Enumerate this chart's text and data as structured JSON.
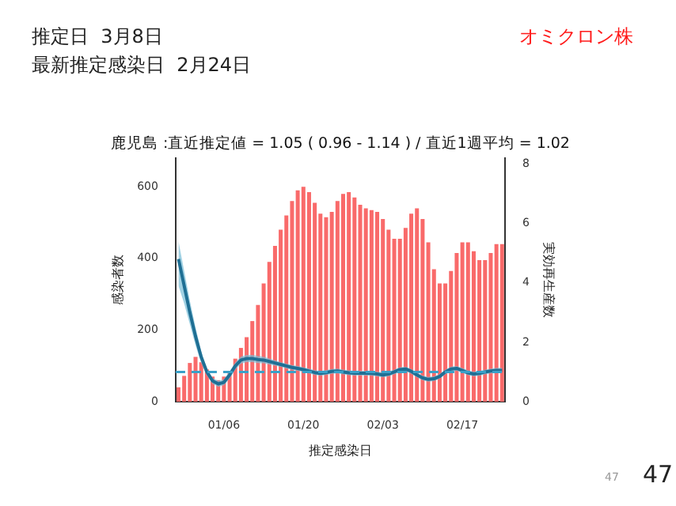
{
  "chart_data": {
    "type": "bar",
    "title": "鹿児島 :直近推定値 = 1.05 ( 0.96 - 1.14 ) / 直近1週平均 = 1.02",
    "xlabel": "推定感染日",
    "ylabel": "感染者数",
    "y2label": "実効再生産数",
    "annotations": [
      "推定日  3月8日",
      "最新推定感染日  2月24日",
      "オミクロン株",
      "47",
      "47"
    ],
    "categories": [
      null,
      null,
      null,
      null,
      null,
      null,
      null,
      null,
      "01/06",
      null,
      null,
      null,
      null,
      null,
      null,
      null,
      null,
      null,
      null,
      null,
      null,
      null,
      "01/20",
      null,
      null,
      null,
      null,
      null,
      null,
      null,
      null,
      null,
      null,
      null,
      null,
      null,
      "02/03",
      null,
      null,
      null,
      null,
      null,
      null,
      null,
      null,
      null,
      null,
      null,
      null,
      null,
      "02/17",
      null,
      null,
      null,
      null,
      null,
      null,
      null
    ],
    "series": [
      {
        "color": "#f96a6a",
        "values": [
          40,
          72,
          108,
          125,
          110,
          90,
          70,
          60,
          70,
          85,
          120,
          150,
          180,
          225,
          270,
          330,
          390,
          435,
          480,
          520,
          560,
          590,
          600,
          585,
          555,
          525,
          515,
          530,
          560,
          580,
          585,
          570,
          550,
          540,
          535,
          530,
          510,
          480,
          455,
          455,
          485,
          525,
          540,
          510,
          445,
          370,
          330,
          330,
          365,
          415,
          445,
          445,
          420,
          395,
          395,
          415,
          440,
          440
        ]
      },
      {
        "type": "line",
        "axis": "y2",
        "color": "#1f6f94",
        "marker": "none",
        "line_style": "solid",
        "values": [
          4.8,
          3.9,
          3.0,
          2.2,
          1.5,
          1.0,
          0.7,
          0.6,
          0.65,
          0.9,
          1.2,
          1.4,
          1.45,
          1.45,
          1.42,
          1.4,
          1.35,
          1.3,
          1.25,
          1.2,
          1.15,
          1.12,
          1.08,
          1.03,
          0.98,
          0.95,
          0.98,
          1.02,
          1.03,
          1.0,
          0.97,
          0.96,
          0.96,
          0.96,
          0.95,
          0.93,
          0.9,
          0.93,
          1.0,
          1.08,
          1.1,
          1.02,
          0.9,
          0.8,
          0.75,
          0.77,
          0.85,
          1.0,
          1.1,
          1.12,
          1.05,
          0.97,
          0.93,
          0.95,
          1.0,
          1.03,
          1.05,
          1.05
        ],
        "lower": [
          3.9,
          3.3,
          2.6,
          1.9,
          1.3,
          0.88,
          0.6,
          0.5,
          0.55,
          0.78,
          1.08,
          1.28,
          1.33,
          1.33,
          1.3,
          1.29,
          1.25,
          1.21,
          1.17,
          1.12,
          1.07,
          1.04,
          1.0,
          0.95,
          0.9,
          0.87,
          0.9,
          0.94,
          0.95,
          0.92,
          0.89,
          0.88,
          0.88,
          0.88,
          0.87,
          0.85,
          0.82,
          0.85,
          0.92,
          1.0,
          1.02,
          0.94,
          0.82,
          0.72,
          0.67,
          0.69,
          0.77,
          0.92,
          1.02,
          1.04,
          0.97,
          0.89,
          0.85,
          0.87,
          0.92,
          0.95,
          0.96,
          0.96
        ],
        "upper": [
          5.4,
          4.4,
          3.4,
          2.5,
          1.7,
          1.12,
          0.8,
          0.7,
          0.75,
          1.02,
          1.32,
          1.52,
          1.57,
          1.57,
          1.54,
          1.51,
          1.45,
          1.39,
          1.33,
          1.28,
          1.23,
          1.2,
          1.16,
          1.11,
          1.06,
          1.03,
          1.06,
          1.1,
          1.11,
          1.08,
          1.05,
          1.04,
          1.04,
          1.04,
          1.03,
          1.01,
          0.98,
          1.01,
          1.08,
          1.16,
          1.18,
          1.1,
          0.98,
          0.88,
          0.83,
          0.85,
          0.93,
          1.08,
          1.18,
          1.2,
          1.13,
          1.05,
          1.01,
          1.03,
          1.08,
          1.11,
          1.14,
          1.14
        ]
      }
    ],
    "ylim": [
      0,
      680
    ],
    "yticks": [
      0,
      200,
      400,
      600
    ],
    "y2lim": [
      0,
      8.2
    ],
    "y2ticks": [
      0,
      2,
      4,
      6,
      8
    ],
    "ref_lines": [
      {
        "axis": "y2",
        "value": 1,
        "color": "#3aa0c8",
        "line_style": "dashed"
      }
    ],
    "grid": false,
    "legend": false
  }
}
